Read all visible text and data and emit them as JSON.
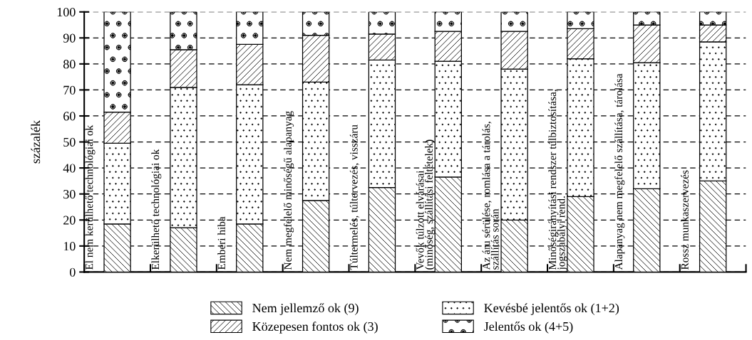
{
  "chart_data": {
    "type": "bar",
    "stacked": true,
    "ylabel": "százalék",
    "categories": [
      "El nem kerülhető technológiai ok",
      "Elkerülhető technológiai ok",
      "Emberi hiba",
      "Nem megfelelő minőségű alapanyag",
      "Túltermelés, túltervezés, visszáru",
      "Vevők túlzott elvárásai\n(minőség, szállítási feltételek)",
      "Az áru sérülése, romlása a tárolás,\nszállítás során",
      "Minőségirányítási rendszer túlbiztosítása,\njogszabályi rend.",
      "Alapanyag nem megfelelő szállítása, tárolása",
      "Rossz munkaszervezés"
    ],
    "series": [
      {
        "name": "Nem jellemző ok (9)",
        "color": "#000000",
        "values": [
          18.5,
          17,
          18.5,
          27.5,
          32.5,
          36.5,
          20,
          29,
          32,
          35
        ]
      },
      {
        "name": "Kevésbé jelentős ok (1+2)",
        "color": "#000000",
        "values": [
          31,
          54,
          53.5,
          45.5,
          49,
          44.5,
          58,
          53,
          48.5,
          53.5
        ]
      },
      {
        "name": "Közepesen fontos ok (3)",
        "color": "#000000",
        "values": [
          12,
          14.5,
          15.5,
          18,
          10,
          11.5,
          14.5,
          11.5,
          14.5,
          6.5
        ]
      },
      {
        "name": "Jelentős ok (4+5)",
        "color": "#000000",
        "values": [
          38.5,
          14.5,
          12.5,
          9,
          8.5,
          7.5,
          7.5,
          6.5,
          5,
          5
        ]
      }
    ],
    "ylim": [
      0,
      100
    ],
    "yticks": [
      0,
      10,
      20,
      30,
      40,
      50,
      60,
      70,
      80,
      90,
      100
    ],
    "grid": "y",
    "legend": "bottom",
    "tick_labels": "y"
  }
}
